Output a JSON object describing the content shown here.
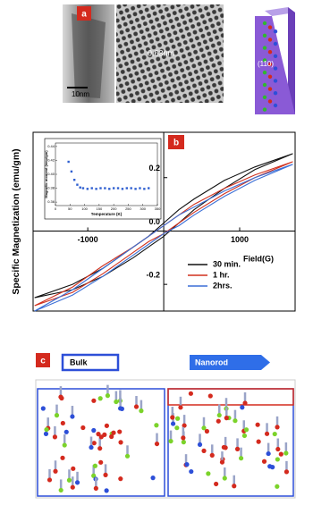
{
  "panels": {
    "a": {
      "label": "a",
      "scale_bar": "10nm",
      "spacing": "0.63nm",
      "facet": "(110)"
    },
    "b": {
      "label": "b"
    },
    "c": {
      "label": "c",
      "bulk": "Bulk",
      "nanorod": "Nanorod"
    }
  },
  "chart_data": [
    {
      "type": "line",
      "ylabel": "Specific Magnetization (emu/gm)",
      "xlabel": "Field(G)",
      "x": [
        -1700,
        -1200,
        -800,
        -400,
        -200,
        0,
        200,
        400,
        800,
        1200,
        1700,
        1200,
        800,
        400,
        200,
        0,
        -200,
        -400,
        -800,
        -1200,
        -1700
      ],
      "series": [
        {
          "name": "30 min.",
          "color": "#111111",
          "values": [
            -0.25,
            -0.22,
            -0.17,
            -0.1,
            -0.06,
            -0.02,
            0.03,
            0.08,
            0.16,
            0.23,
            0.29,
            0.24,
            0.19,
            0.12,
            0.08,
            0.03,
            -0.02,
            -0.06,
            -0.14,
            -0.2,
            -0.25
          ]
        },
        {
          "name": "1 hr.",
          "color": "#d0301e",
          "values": [
            -0.28,
            -0.23,
            -0.16,
            -0.08,
            -0.04,
            -0.01,
            0.03,
            0.07,
            0.14,
            0.2,
            0.26,
            0.21,
            0.16,
            0.1,
            0.06,
            0.02,
            -0.02,
            -0.06,
            -0.13,
            -0.21,
            -0.28
          ]
        },
        {
          "name": "2hrs.",
          "color": "#3b6fd6",
          "values": [
            -0.3,
            -0.24,
            -0.17,
            -0.09,
            -0.05,
            -0.01,
            0.02,
            0.06,
            0.13,
            0.19,
            0.25,
            0.2,
            0.15,
            0.09,
            0.06,
            0.02,
            -0.02,
            -0.06,
            -0.14,
            -0.22,
            -0.3
          ]
        }
      ],
      "xlim": [
        -1720,
        1730
      ],
      "ylim": [
        -0.3,
        0.37
      ],
      "xticks": [
        -1000,
        1000
      ],
      "yticks": [
        0.2,
        {
          "value": 0,
          "label": "0.0"
        },
        -0.2
      ]
    },
    {
      "type": "scatter",
      "ylabel": "Magnetic moment (emu/gm)",
      "xlabel": "Temperature (K)",
      "color": "#2f5fd0",
      "x": [
        45,
        55,
        65,
        75,
        85,
        95,
        110,
        125,
        140,
        155,
        170,
        185,
        200,
        215,
        230,
        245,
        260,
        275,
        290,
        305,
        320
      ],
      "values": [
        0.418,
        0.404,
        0.392,
        0.385,
        0.381,
        0.38,
        0.379,
        0.38,
        0.379,
        0.38,
        0.38,
        0.379,
        0.38,
        0.38,
        0.379,
        0.38,
        0.38,
        0.379,
        0.38,
        0.379,
        0.38
      ],
      "xlim": [
        0,
        350
      ],
      "ylim": [
        0.355,
        0.445
      ],
      "xticks": [
        0,
        50,
        100,
        150,
        200,
        250,
        300,
        350
      ],
      "yticks": [
        0.44,
        0.42,
        {
          "value": 0.4,
          "label": "0.40"
        },
        0.38,
        0.36
      ]
    }
  ]
}
